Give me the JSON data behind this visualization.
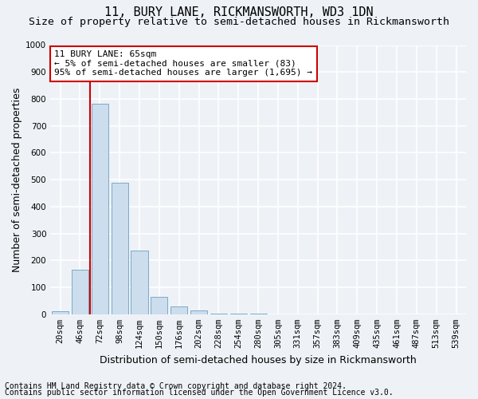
{
  "title": "11, BURY LANE, RICKMANSWORTH, WD3 1DN",
  "subtitle": "Size of property relative to semi-detached houses in Rickmansworth",
  "xlabel": "Distribution of semi-detached houses by size in Rickmansworth",
  "ylabel": "Number of semi-detached properties",
  "bar_color": "#ccdded",
  "bar_edge_color": "#7aaac8",
  "categories": [
    "20sqm",
    "46sqm",
    "72sqm",
    "98sqm",
    "124sqm",
    "150sqm",
    "176sqm",
    "202sqm",
    "228sqm",
    "254sqm",
    "280sqm",
    "305sqm",
    "331sqm",
    "357sqm",
    "383sqm",
    "409sqm",
    "435sqm",
    "461sqm",
    "487sqm",
    "513sqm",
    "539sqm"
  ],
  "values": [
    12,
    165,
    783,
    490,
    237,
    65,
    30,
    15,
    2,
    1,
    1,
    0,
    0,
    0,
    0,
    0,
    0,
    0,
    0,
    0,
    0
  ],
  "ylim": [
    0,
    1000
  ],
  "yticks": [
    0,
    100,
    200,
    300,
    400,
    500,
    600,
    700,
    800,
    900,
    1000
  ],
  "vline_x_index": 1.5,
  "vline_color": "#cc0000",
  "annotation_text": "11 BURY LANE: 65sqm\n← 5% of semi-detached houses are smaller (83)\n95% of semi-detached houses are larger (1,695) →",
  "annotation_box_color": "#ffffff",
  "annotation_box_edge": "#cc0000",
  "footer_line1": "Contains HM Land Registry data © Crown copyright and database right 2024.",
  "footer_line2": "Contains public sector information licensed under the Open Government Licence v3.0.",
  "background_color": "#eef2f7",
  "grid_color": "#ffffff",
  "title_fontsize": 11,
  "subtitle_fontsize": 9.5,
  "ylabel_fontsize": 9,
  "xlabel_fontsize": 9,
  "tick_fontsize": 7.5,
  "annotation_fontsize": 8,
  "footer_fontsize": 7
}
